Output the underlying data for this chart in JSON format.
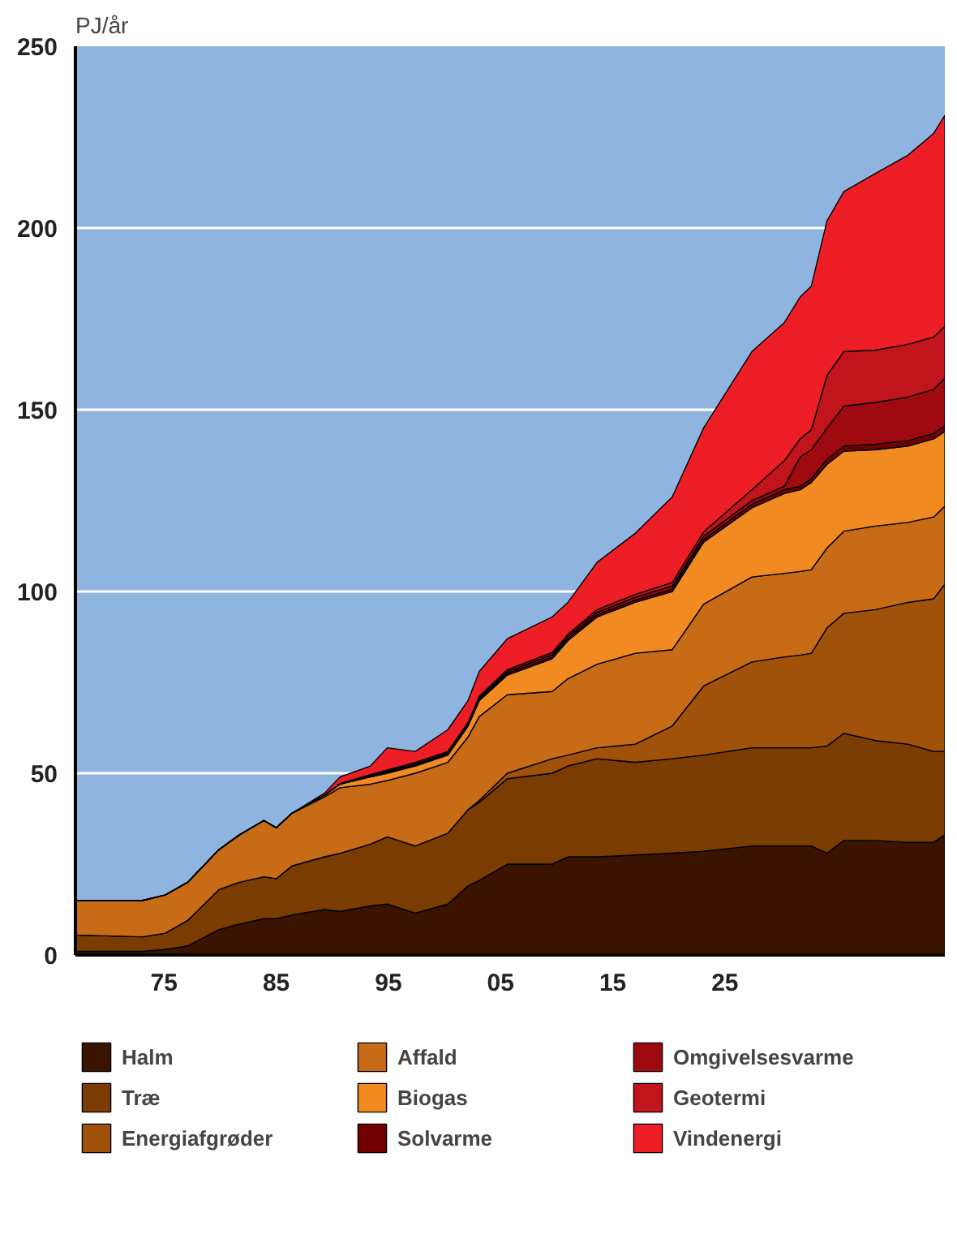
{
  "chart_data": {
    "type": "area",
    "stacked": true,
    "ylabel": "PJ/år",
    "x": [
      1967.1,
      1973.1,
      1975.1,
      1977.1,
      1979.9,
      1981.7,
      1983.9,
      1985,
      1986.4,
      1989.3,
      1990.7,
      1993.4,
      1994.9,
      1997.4,
      2000.3,
      2002.1,
      2003.1,
      2005.6,
      2009.6,
      2011,
      2013.6,
      2017,
      2020.3,
      2023.1,
      2027.4,
      2030.3,
      2031.7,
      2032.7,
      2034.1,
      2035.6,
      2038.4,
      2041.3,
      2043.6,
      2044.6
    ],
    "xlim": [
      1967.1,
      2044.6
    ],
    "xticks": [
      {
        "value": 1975,
        "label": "75"
      },
      {
        "value": 1985,
        "label": "85"
      },
      {
        "value": 1995,
        "label": "95"
      },
      {
        "value": 2005,
        "label": "05"
      },
      {
        "value": 2015,
        "label": "15"
      },
      {
        "value": 2025,
        "label": "25"
      }
    ],
    "ylim": [
      0,
      250
    ],
    "yticks": [
      0,
      50,
      100,
      150,
      200,
      250
    ],
    "grid": "y",
    "legend": "bottom",
    "series": [
      {
        "name": "Halm",
        "color": "#3a1400",
        "values": [
          1,
          1,
          1.5,
          2.5,
          7,
          8.5,
          10,
          10,
          11,
          12.5,
          12,
          13.5,
          14,
          11.5,
          14,
          19,
          20.5,
          25,
          25,
          27,
          27,
          27.5,
          28,
          28.5,
          30,
          30,
          30,
          30,
          28,
          31.5,
          31.5,
          31,
          31,
          33
        ]
      },
      {
        "name": "Træ",
        "color": "#7a3c00",
        "values": [
          4.5,
          4,
          4.5,
          7,
          11,
          11.5,
          11.5,
          11,
          13.5,
          14.5,
          16,
          17,
          18.5,
          18.5,
          19.5,
          21,
          21.5,
          23.5,
          25,
          25,
          27,
          25.5,
          26,
          26.5,
          27,
          27,
          27,
          27,
          29.5,
          29.5,
          27.5,
          27,
          25,
          23
        ]
      },
      {
        "name": "Energiafgrøder",
        "color": "#a0520a",
        "values": [
          0,
          0,
          0,
          0,
          0,
          0,
          0,
          0,
          0,
          0,
          0,
          0,
          0,
          0,
          0,
          0,
          0.5,
          1.5,
          4,
          3,
          3,
          5,
          9,
          19,
          23.6,
          25,
          25.5,
          26,
          32.5,
          33,
          36,
          39,
          42,
          46
        ]
      },
      {
        "name": "Affald",
        "color": "#c86b17",
        "values": [
          9.5,
          10,
          10.5,
          10.5,
          11,
          13,
          15.5,
          14,
          14.5,
          16.5,
          18,
          16.5,
          15.5,
          20,
          19.5,
          20,
          23.1,
          21.6,
          18.5,
          21,
          23,
          25,
          21,
          22.5,
          23.4,
          23,
          23,
          23,
          22,
          22.6,
          23,
          22,
          22.5,
          21.5
        ]
      },
      {
        "name": "Biogas",
        "color": "#f28a22",
        "values": [
          0,
          0,
          0,
          0,
          0,
          0,
          0,
          0,
          0,
          0.5,
          1,
          2,
          2,
          2,
          2,
          3,
          4.4,
          5.4,
          9,
          10.5,
          13,
          14,
          16,
          17.1,
          19,
          22,
          22.5,
          24,
          23,
          22,
          21,
          21,
          21.5,
          20.5
        ]
      },
      {
        "name": "Solvarme",
        "color": "#720000",
        "values": [
          0,
          0,
          0,
          0,
          0,
          0,
          0,
          0,
          0,
          0,
          0,
          0.2,
          0.3,
          0.3,
          0.3,
          0.3,
          0.4,
          0.5,
          0.5,
          0.5,
          0.6,
          0.6,
          0.7,
          0.7,
          1,
          1,
          1,
          1,
          1.5,
          1.4,
          1.5,
          1.5,
          1.5,
          1.5
        ]
      },
      {
        "name": "Omgivelsesvarme",
        "color": "#9e0a10",
        "values": [
          0,
          0,
          0,
          0,
          0,
          0,
          0,
          0,
          0,
          0,
          0,
          0.2,
          0.3,
          0.3,
          0.3,
          0.3,
          0.4,
          0.5,
          0.6,
          0.6,
          0.7,
          0.8,
          0.8,
          0.9,
          1,
          1,
          8,
          8,
          8.5,
          11,
          11.5,
          12,
          12.1,
          13.2
        ]
      },
      {
        "name": "Geotermi",
        "color": "#c2141c",
        "values": [
          0,
          0,
          0,
          0,
          0,
          0,
          0,
          0,
          0,
          0,
          0.2,
          0.2,
          0.3,
          0.4,
          0.4,
          0.4,
          0.4,
          0.5,
          0.6,
          0.6,
          0.7,
          0.8,
          1,
          1.2,
          3,
          7,
          5,
          5.5,
          14.5,
          15,
          14.4,
          14.5,
          14.4,
          14.3
        ]
      },
      {
        "name": "Vindenergi",
        "color": "#ee1e26",
        "values": [
          0,
          0,
          0,
          0,
          0,
          0,
          0,
          0,
          0,
          0.5,
          1.8,
          2.4,
          6.1,
          3,
          6,
          6,
          6.8,
          8.5,
          9.8,
          8.8,
          13,
          16.8,
          23.5,
          28.6,
          38,
          38,
          39,
          39.5,
          42.5,
          44,
          48.6,
          52,
          56,
          58
        ]
      }
    ]
  }
}
